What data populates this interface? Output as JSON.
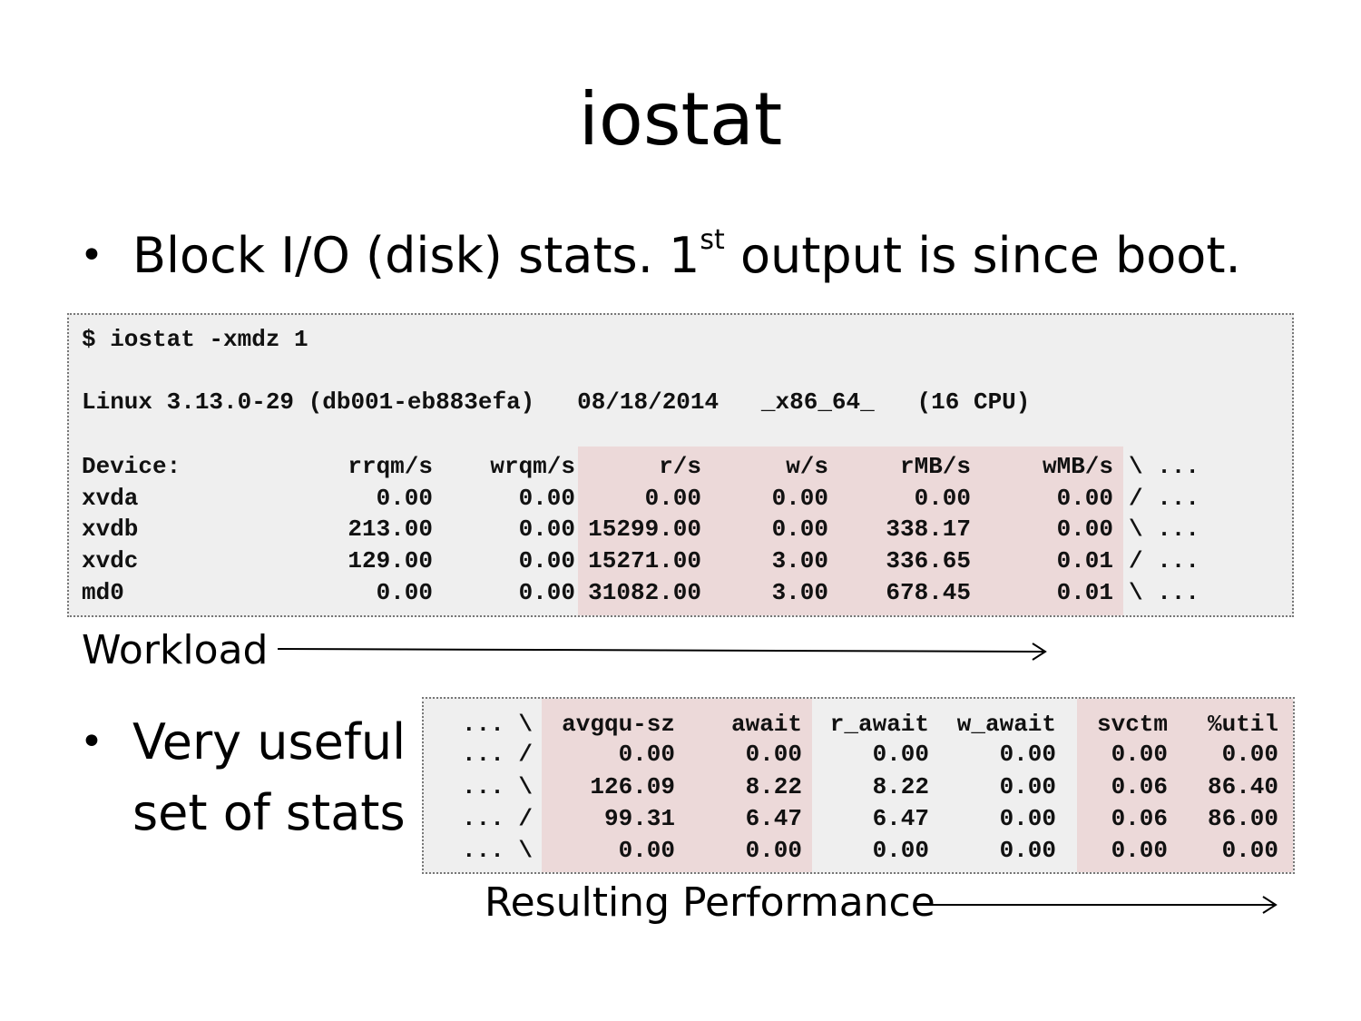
{
  "title": "iostat",
  "bullets": [
    {
      "text": "Block I/O (disk) stats. 1",
      "sup": "st",
      "rest": " output is since boot."
    },
    {
      "line1": "Very useful",
      "line2": "set of stats"
    }
  ],
  "terminal1": {
    "command": "$ iostat -xmdz 1",
    "sysline": "Linux 3.13.0-29 (db001-eb883efa)   08/18/2014   _x86_64_   (16 CPU)",
    "headers": [
      "Device:",
      "rrqm/s",
      "wrqm/s",
      "r/s",
      "w/s",
      "rMB/s",
      "wMB/s",
      "\\ ..."
    ],
    "rows": [
      [
        "xvda",
        "0.00",
        "0.00",
        "0.00",
        "0.00",
        "0.00",
        "0.00",
        "/ ..."
      ],
      [
        "xvdb",
        "213.00",
        "0.00",
        "15299.00",
        "0.00",
        "338.17",
        "0.00",
        "\\ ..."
      ],
      [
        "xvdc",
        "129.00",
        "0.00",
        "15271.00",
        "3.00",
        "336.65",
        "0.01",
        "/ ..."
      ],
      [
        "md0",
        "0.00",
        "0.00",
        "31082.00",
        "3.00",
        "678.45",
        "0.01",
        "\\ ..."
      ]
    ]
  },
  "terminal2": {
    "headers": [
      "... \\",
      "avgqu-sz",
      "await",
      "r_await",
      "w_await",
      "svctm",
      "%util"
    ],
    "rows": [
      [
        "... /",
        "0.00",
        "0.00",
        "0.00",
        "0.00",
        "0.00",
        "0.00"
      ],
      [
        "... \\",
        "126.09",
        "8.22",
        "8.22",
        "0.00",
        "0.06",
        "86.40"
      ],
      [
        "... /",
        "99.31",
        "6.47",
        "6.47",
        "0.00",
        "0.06",
        "86.00"
      ],
      [
        "... \\",
        "0.00",
        "0.00",
        "0.00",
        "0.00",
        "0.00",
        "0.00"
      ]
    ]
  },
  "labels": {
    "workload": "Workload",
    "performance": "Resulting Performance"
  }
}
